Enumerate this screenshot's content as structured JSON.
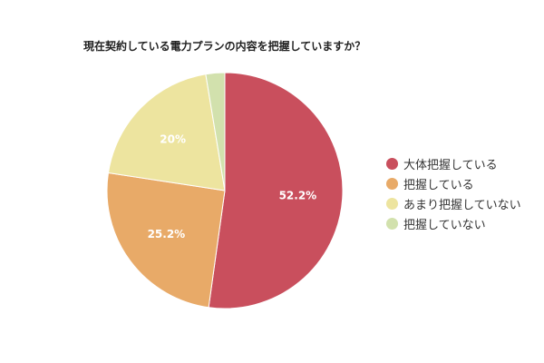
{
  "chart_data": {
    "type": "pie",
    "title": "現在契約している電力プランの内容を把握していますか？",
    "slices": [
      {
        "label": "大体把握している",
        "value": 52.2,
        "value_label": "52.2%",
        "color": "#c94f5d"
      },
      {
        "label": "把握している",
        "value": 25.2,
        "value_label": "25.2%",
        "color": "#e8aa68"
      },
      {
        "label": "あまり把握していない",
        "value": 20,
        "value_label": "20%",
        "color": "#ede49f"
      },
      {
        "label": "把握していない",
        "value": 2.6,
        "value_label": "",
        "color": "#d2e1ad"
      }
    ],
    "legend_position": "right",
    "start_angle": "top",
    "direction": "clockwise"
  }
}
